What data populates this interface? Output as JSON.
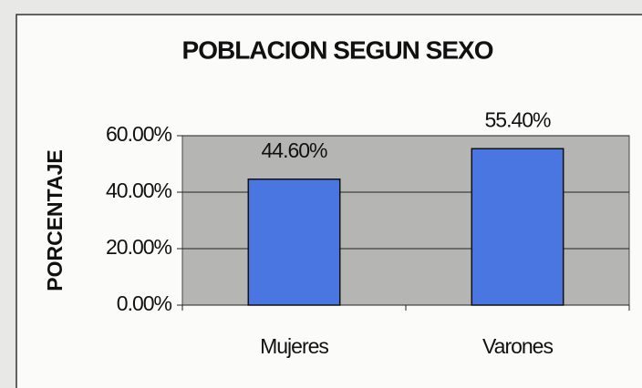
{
  "chart_data": {
    "type": "bar",
    "title": "POBLACION SEGUN SEXO",
    "ylabel": "PORCENTAJE",
    "categories": [
      "Mujeres",
      "Varones"
    ],
    "values": [
      44.6,
      55.4
    ],
    "value_labels": [
      "44.60%",
      "55.40%"
    ],
    "color": "#4a76e2",
    "ylim": [
      0,
      60
    ],
    "yticks": [
      {
        "value": 0,
        "label": "0.00%"
      },
      {
        "value": 20,
        "label": "20.00%"
      },
      {
        "value": 40,
        "label": "40.00%"
      },
      {
        "value": 60,
        "label": "60.00%"
      }
    ],
    "grid": true
  }
}
